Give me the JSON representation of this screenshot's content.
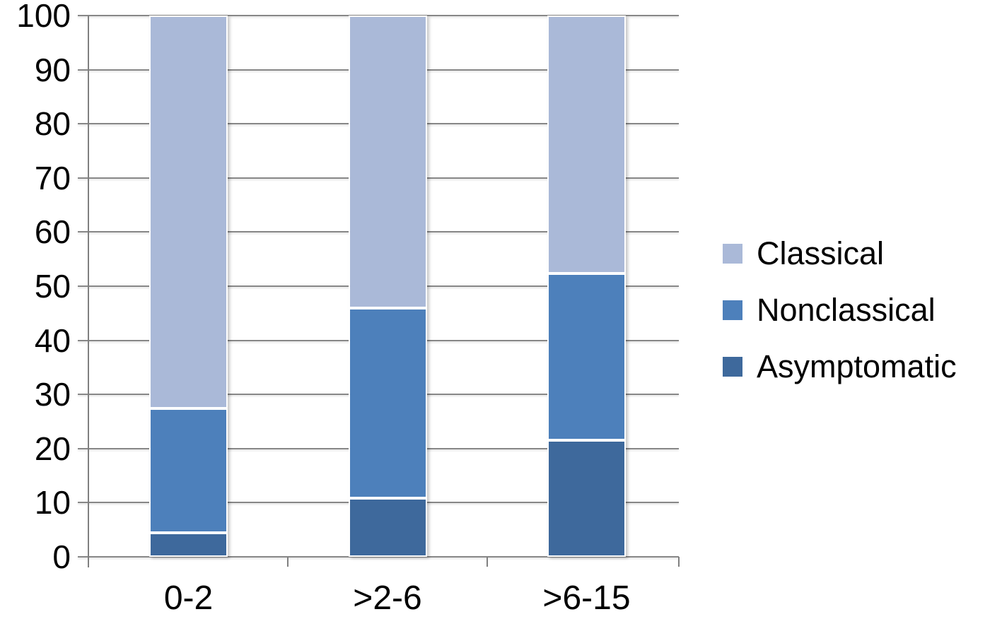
{
  "chart_data": {
    "type": "bar",
    "stacked": true,
    "title": "",
    "xlabel": "",
    "ylabel": "",
    "categories": [
      "0-2",
      ">2-6",
      ">6-15"
    ],
    "series": [
      {
        "name": "Asymptomatic",
        "color": "#3e699c",
        "values": [
          4.5,
          10.8,
          21.5
        ]
      },
      {
        "name": "Nonclassical",
        "color": "#4d80bb",
        "values": [
          22.9,
          35.1,
          30.9
        ]
      },
      {
        "name": "Classical",
        "color": "#aab9d8",
        "values": [
          72.6,
          54.1,
          47.6
        ]
      }
    ],
    "stack_order_bottom_to_top": [
      "Asymptomatic",
      "Nonclassical",
      "Classical"
    ],
    "ylim": [
      0,
      100
    ],
    "y_ticks": [
      0,
      10,
      20,
      30,
      40,
      50,
      60,
      70,
      80,
      90,
      100
    ],
    "grid": true,
    "legend_position": "right",
    "legend_order": [
      "Classical",
      "Nonclassical",
      "Asymptomatic"
    ]
  },
  "colors": {
    "gridline": "#878787",
    "axis": "#808080",
    "text": "#000000",
    "background": "#ffffff",
    "segment_border": "#ffffff"
  }
}
